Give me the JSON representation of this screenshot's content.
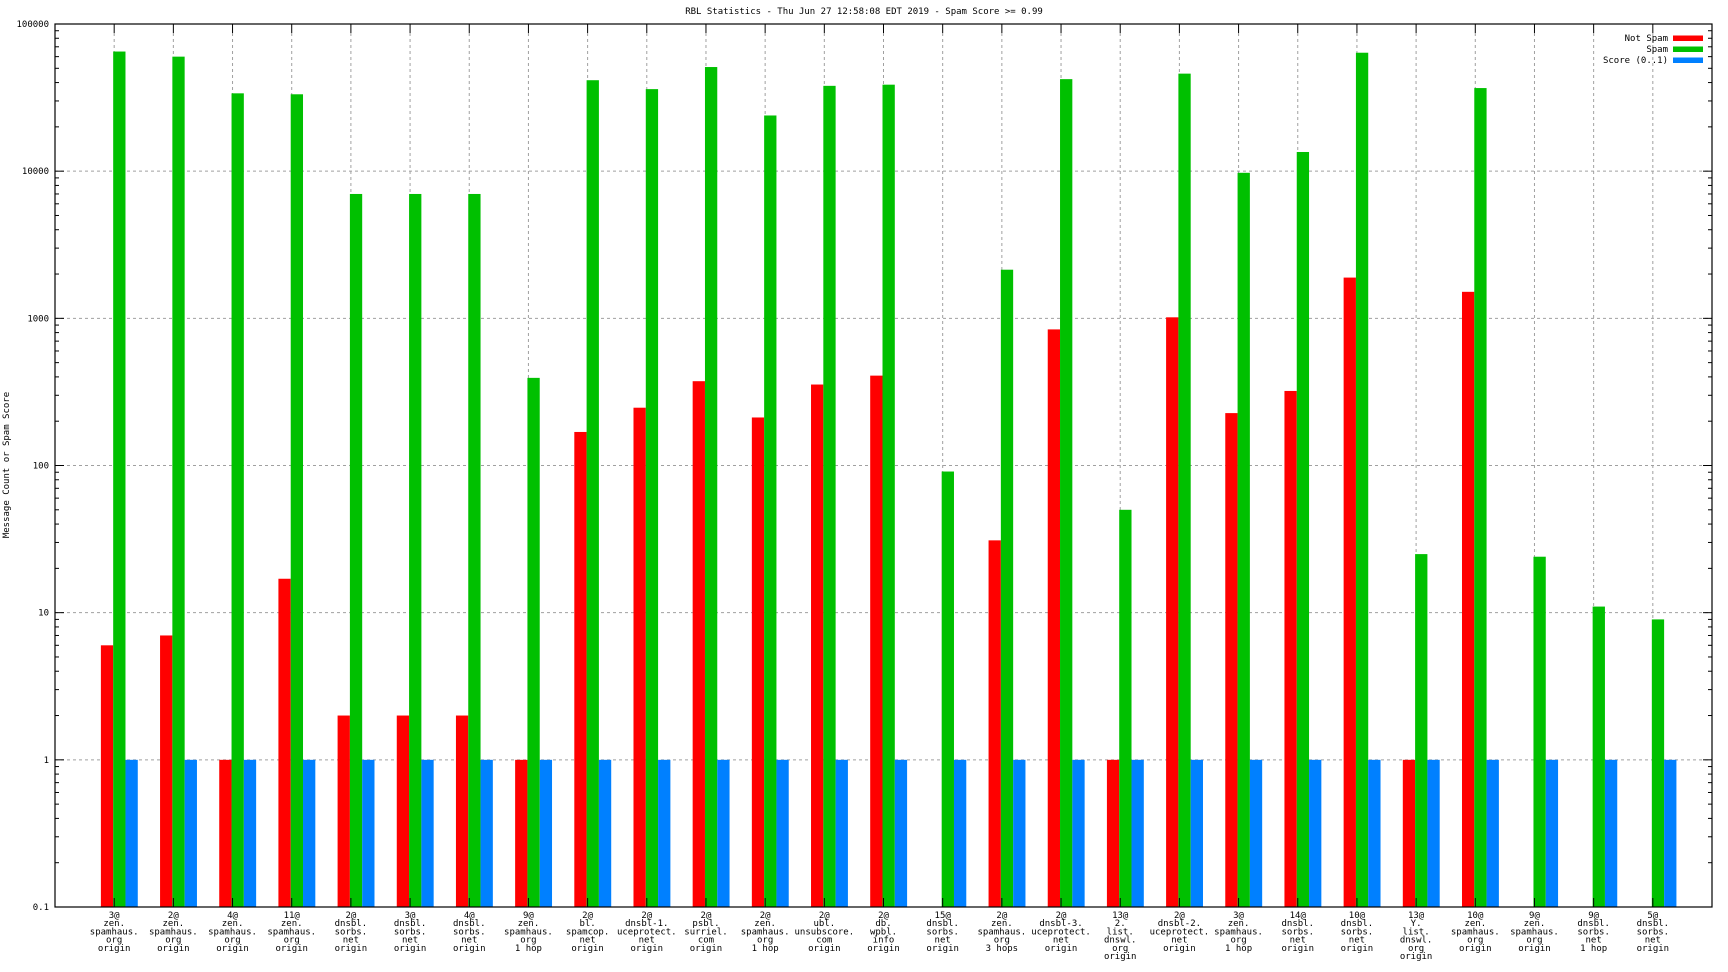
{
  "chart_data": {
    "type": "bar",
    "title": "RBL Statistics - Thu Jun 27 12:58:08 EDT 2019 - Spam Score >= 0.99",
    "xlabel": "",
    "ylabel": "Message Count or Spam Score",
    "yscale": "log",
    "ylim": [
      0.1,
      100000
    ],
    "yticks": [
      "0.1",
      "1",
      "10",
      "100",
      "1000",
      "10000",
      "100000"
    ],
    "grid": true,
    "legend_position": "top-right",
    "categories": [
      [
        "3@",
        "zen.",
        "spamhaus.",
        "org",
        "origin"
      ],
      [
        "2@",
        "zen.",
        "spamhaus.",
        "org",
        "origin"
      ],
      [
        "4@",
        "zen.",
        "spamhaus.",
        "org",
        "origin"
      ],
      [
        "11@",
        "zen.",
        "spamhaus.",
        "org",
        "origin"
      ],
      [
        "2@",
        "dnsbl.",
        "sorbs.",
        "net",
        "origin"
      ],
      [
        "3@",
        "dnsbl.",
        "sorbs.",
        "net",
        "origin"
      ],
      [
        "4@",
        "dnsbl.",
        "sorbs.",
        "net",
        "origin"
      ],
      [
        "9@",
        "zen.",
        "spamhaus.",
        "org",
        "1 hop"
      ],
      [
        "2@",
        "bl.",
        "spamcop.",
        "net",
        "origin"
      ],
      [
        "2@",
        "dnsbl-1.",
        "uceprotect.",
        "net",
        "origin"
      ],
      [
        "2@",
        "psbl.",
        "surriel.",
        "com",
        "origin"
      ],
      [
        "2@",
        "zen.",
        "spamhaus.",
        "org",
        "1 hop"
      ],
      [
        "2@",
        "ubl.",
        "unsubscore.",
        "com",
        "origin"
      ],
      [
        "2@",
        "db.",
        "wpbl.",
        "info",
        "origin"
      ],
      [
        "15@",
        "dnsbl.",
        "sorbs.",
        "net",
        "origin"
      ],
      [
        "2@",
        "zen.",
        "spamhaus.",
        "org",
        "3 hops"
      ],
      [
        "2@",
        "dnsbl-3.",
        "uceprotect.",
        "net",
        "origin"
      ],
      [
        "13@",
        "2.",
        "list.",
        "dnswl.",
        "org",
        "origin"
      ],
      [
        "2@",
        "dnsbl-2.",
        "uceprotect.",
        "net",
        "origin"
      ],
      [
        "3@",
        "zen.",
        "spamhaus.",
        "org",
        "1 hop"
      ],
      [
        "14@",
        "dnsbl.",
        "sorbs.",
        "net",
        "origin"
      ],
      [
        "10@",
        "dnsbl.",
        "sorbs.",
        "net",
        "origin"
      ],
      [
        "13@",
        "Y.",
        "list.",
        "dnswl.",
        "org",
        "origin"
      ],
      [
        "10@",
        "zen.",
        "spamhaus.",
        "org",
        "origin"
      ],
      [
        "9@",
        "zen.",
        "spamhaus.",
        "org",
        "origin"
      ],
      [
        "9@",
        "dnsbl.",
        "sorbs.",
        "net",
        "1 hop"
      ],
      [
        "5@",
        "dnsbl.",
        "sorbs.",
        "net",
        "origin"
      ]
    ],
    "series": [
      {
        "name": "Not Spam",
        "color": "#ff0000",
        "values": [
          6,
          7,
          1,
          17,
          2,
          2,
          2,
          1,
          169,
          247,
          374,
          212,
          355,
          408,
          null,
          31,
          841,
          1,
          1016,
          227,
          321,
          1892,
          1,
          1514,
          null,
          null,
          null
        ]
      },
      {
        "name": "Spam",
        "color": "#00c000",
        "values": [
          65000,
          60000,
          33800,
          33300,
          7000,
          7000,
          7000,
          394,
          41500,
          36100,
          51000,
          23900,
          38000,
          38700,
          91,
          2140,
          42200,
          50,
          46000,
          9750,
          13500,
          63800,
          25,
          36700,
          24,
          11,
          9
        ]
      },
      {
        "name": "Score (0..1)",
        "color": "#0080ff",
        "values": [
          1,
          1,
          1,
          1,
          1,
          1,
          1,
          1,
          1,
          1,
          1,
          1,
          1,
          1,
          1,
          1,
          1,
          1,
          1,
          1,
          1,
          1,
          1,
          1,
          1,
          1,
          1
        ]
      }
    ]
  }
}
